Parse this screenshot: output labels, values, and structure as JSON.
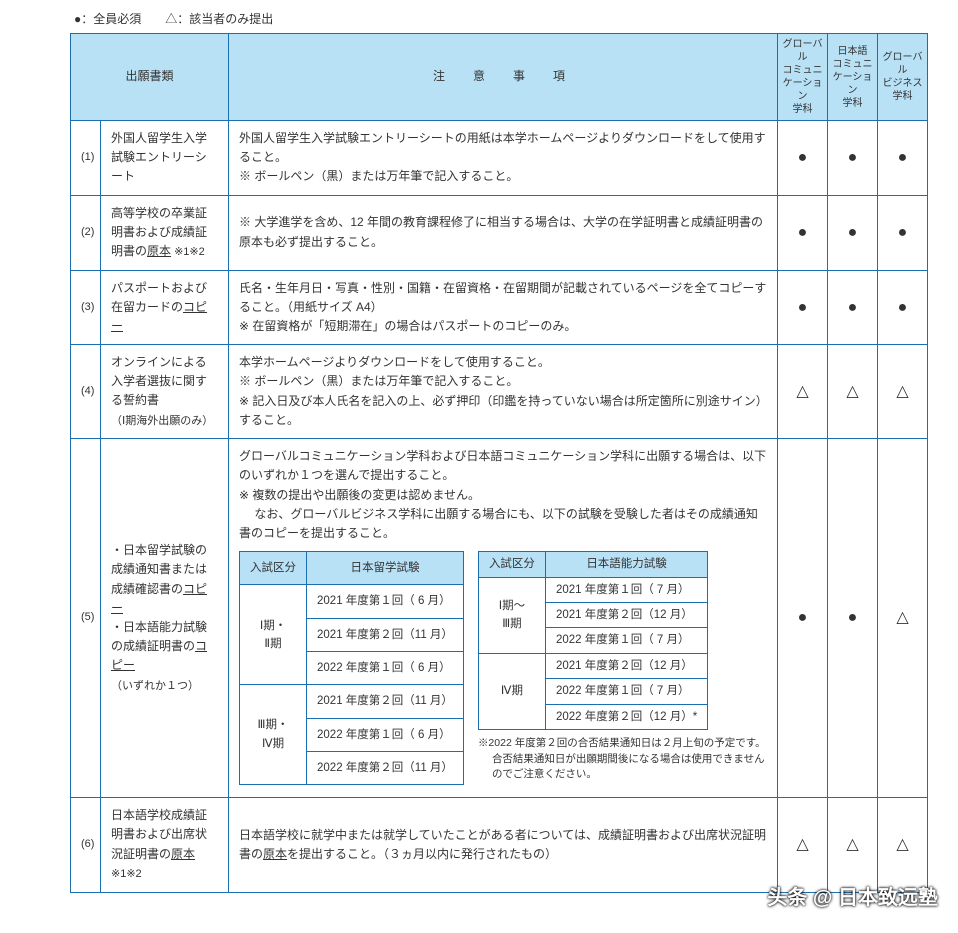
{
  "legend": "●：全員必須　　△：該当者のみ提出",
  "headers": {
    "doc": "出願書類",
    "notes": "注　意　事　項",
    "dept1": "グローバル\nコミュニ\nケーション\n学科",
    "dept2": "日本語\nコミュニ\nケーション\n学科",
    "dept3": "グローバル\nビジネス\n学科"
  },
  "rows": [
    {
      "idx": "(1)",
      "doc": "外国人留学生入学試験エントリーシート",
      "notes": "外国人留学生入学試験エントリーシートの用紙は本学ホームページよりダウンロードをして使用すること。\n※ ボールペン（黒）または万年筆で記入すること。",
      "marks": [
        "●",
        "●",
        "●"
      ]
    },
    {
      "idx": "(2)",
      "doc_html": "高等学校の卒業証明書および成績証明書の<u>原本</u><span class='sub'> ※1※2</span>",
      "notes": "※ 大学進学を含め、12 年間の教育課程修了に相当する場合は、大学の在学証明書と成績証明書の原本も必ず提出すること。",
      "marks": [
        "●",
        "●",
        "●"
      ]
    },
    {
      "idx": "(3)",
      "doc_html": "パスポートおよび在留カードの<u>コピー</u>",
      "notes": "氏名・生年月日・写真・性別・国籍・在留資格・在留期間が記載されているページを全てコピーすること。（用紙サイズ A4）\n※ 在留資格が「短期滞在」の場合はパスポートのコピーのみ。",
      "marks": [
        "●",
        "●",
        "●"
      ]
    },
    {
      "idx": "(4)",
      "doc_html": "オンラインによる入学者選抜に関する誓約書<br><span class='sub'>（Ⅰ期海外出願のみ）</span>",
      "notes": "本学ホームページよりダウンロードをして使用すること。\n※ ボールペン（黒）または万年筆で記入すること。\n※ 記入日及び本人氏名を記入の上、必ず押印（印鑑を持っていない場合は所定箇所に別途サイン）すること。",
      "marks": [
        "△",
        "△",
        "△"
      ]
    },
    {
      "idx": "(5)",
      "doc_html": "・日本留学試験の成績通知書または成績確認書の<u>コピー</u><br>・日本語能力試験の成績証明書の<u>コピー</u><br><span class='sub'>（いずれか１つ）</span>",
      "notes_intro": "グローバルコミュニケーション学科および日本語コミュニケーション学科に出願する場合は、以下のいずれか１つを選んで提出すること。\n※ 複数の提出や出願後の変更は認めません。\n　 なお、グローバルビジネス学科に出願する場合にも、以下の試験を受験した者はその成績通知書のコピーを提出すること。",
      "inner_left": {
        "h1": "入試区分",
        "h2": "日本留学試験",
        "groups": [
          {
            "span": 3,
            "label": "Ⅰ期・\nⅡ期",
            "rows": [
              "2021 年度第１回（  6 月）",
              "2021 年度第２回（11 月）",
              "2022 年度第１回（  6 月）"
            ]
          },
          {
            "span": 3,
            "label": "Ⅲ期・\nⅣ期",
            "rows": [
              "2021 年度第２回（11 月）",
              "2022 年度第１回（  6 月）",
              "2022 年度第２回（11 月）"
            ]
          }
        ]
      },
      "inner_right": {
        "h1": "入試区分",
        "h2": "日本語能力試験",
        "groups": [
          {
            "span": 3,
            "label": "Ⅰ期～\nⅢ期",
            "rows": [
              "2021 年度第１回（  7 月）",
              "2021 年度第２回（12 月）",
              "2022 年度第１回（  7 月）"
            ]
          },
          {
            "span": 3,
            "label": "Ⅳ期",
            "rows": [
              "2021 年度第２回（12 月）",
              "2022 年度第１回（  7 月）",
              "2022 年度第２回（12 月）*"
            ]
          }
        ],
        "footnote": "※2022 年度第２回の合否結果通知日は２月上旬の予定です。合否結果通知日が出願期間後になる場合は使用できませんのでご注意ください。"
      },
      "marks": [
        "●",
        "●",
        "△"
      ]
    },
    {
      "idx": "(6)",
      "doc_html": "日本語学校成績証明書および出席状況証明書の<u>原本</u><span class='sub'> ※1※2</span>",
      "notes_html": "日本語学校に就学中または就学していたことがある者については、成績証明書および出席状況証明書の<u>原本</u>を提出すること。（３ヵ月以内に発行されたもの）",
      "marks": [
        "△",
        "△",
        "△"
      ]
    }
  ],
  "watermark": "头条 @ 日本致远塾"
}
